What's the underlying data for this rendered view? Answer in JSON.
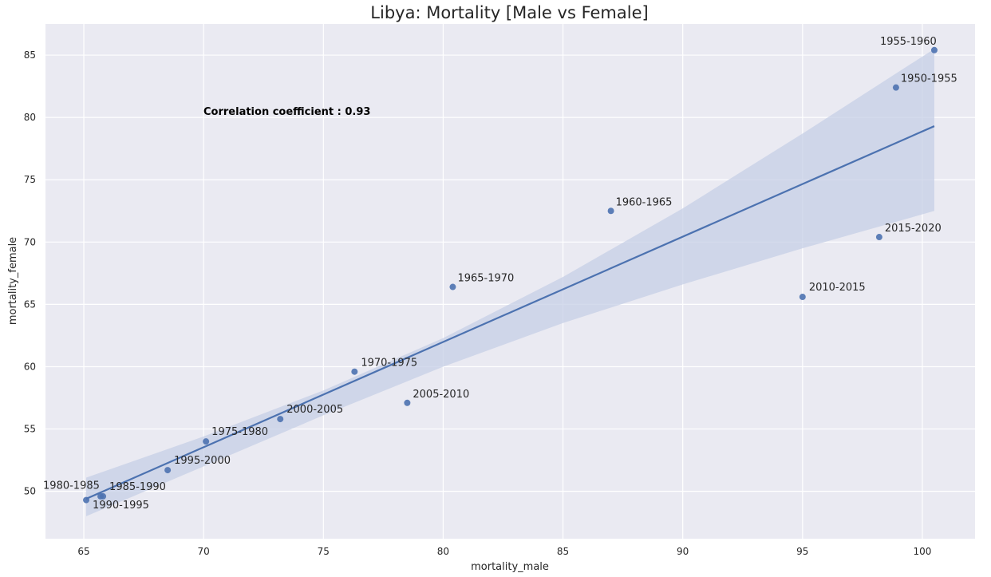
{
  "chart_data": {
    "type": "scatter",
    "title": "Libya: Mortality [Male vs Female]",
    "xlabel": "mortality_male",
    "ylabel": "mortality_female",
    "xlim": [
      63.4,
      102.2
    ],
    "ylim": [
      46.2,
      87.5
    ],
    "xticks": [
      65,
      70,
      75,
      80,
      85,
      90,
      95,
      100
    ],
    "yticks": [
      50,
      55,
      60,
      65,
      70,
      75,
      80,
      85
    ],
    "grid": true,
    "legend": "none",
    "annotation": "Correlation coefficient : 0.93",
    "points": [
      {
        "label": "1950-1955",
        "x": 98.9,
        "y": 82.4
      },
      {
        "label": "1955-1960",
        "x": 100.5,
        "y": 85.4
      },
      {
        "label": "1960-1965",
        "x": 87.0,
        "y": 72.5
      },
      {
        "label": "1965-1970",
        "x": 80.4,
        "y": 66.4
      },
      {
        "label": "1970-1975",
        "x": 76.3,
        "y": 59.6
      },
      {
        "label": "1975-1980",
        "x": 70.1,
        "y": 54.0
      },
      {
        "label": "1980-1985",
        "x": 65.1,
        "y": 49.3
      },
      {
        "label": "1985-1990",
        "x": 65.8,
        "y": 49.6
      },
      {
        "label": "1990-1995",
        "x": 65.7,
        "y": 49.6
      },
      {
        "label": "1995-2000",
        "x": 68.5,
        "y": 51.7
      },
      {
        "label": "2000-2005",
        "x": 73.2,
        "y": 55.8
      },
      {
        "label": "2005-2010",
        "x": 78.5,
        "y": 57.1
      },
      {
        "label": "2010-2015",
        "x": 95.0,
        "y": 65.6
      },
      {
        "label": "2015-2020",
        "x": 98.2,
        "y": 70.4
      }
    ],
    "regression": {
      "line": {
        "x": [
          65.1,
          100.5
        ],
        "y": [
          49.4,
          79.3
        ]
      },
      "ci_upper": {
        "x": [
          65.1,
          70.0,
          75.0,
          80.0,
          85.0,
          90.0,
          95.0,
          100.5
        ],
        "y": [
          51.1,
          54.4,
          58.1,
          62.3,
          67.2,
          72.7,
          78.7,
          85.5
        ]
      },
      "ci_lower": {
        "x": [
          65.1,
          70.0,
          75.0,
          80.0,
          85.0,
          90.0,
          95.0,
          100.5
        ],
        "y": [
          48.0,
          52.0,
          56.1,
          60.0,
          63.5,
          66.6,
          69.5,
          72.5
        ]
      }
    },
    "colors": {
      "background": "#eaeaf2",
      "grid": "#ffffff",
      "point": "#4c72b0",
      "line": "#4c72b0",
      "band": "#c5cfe6"
    }
  }
}
